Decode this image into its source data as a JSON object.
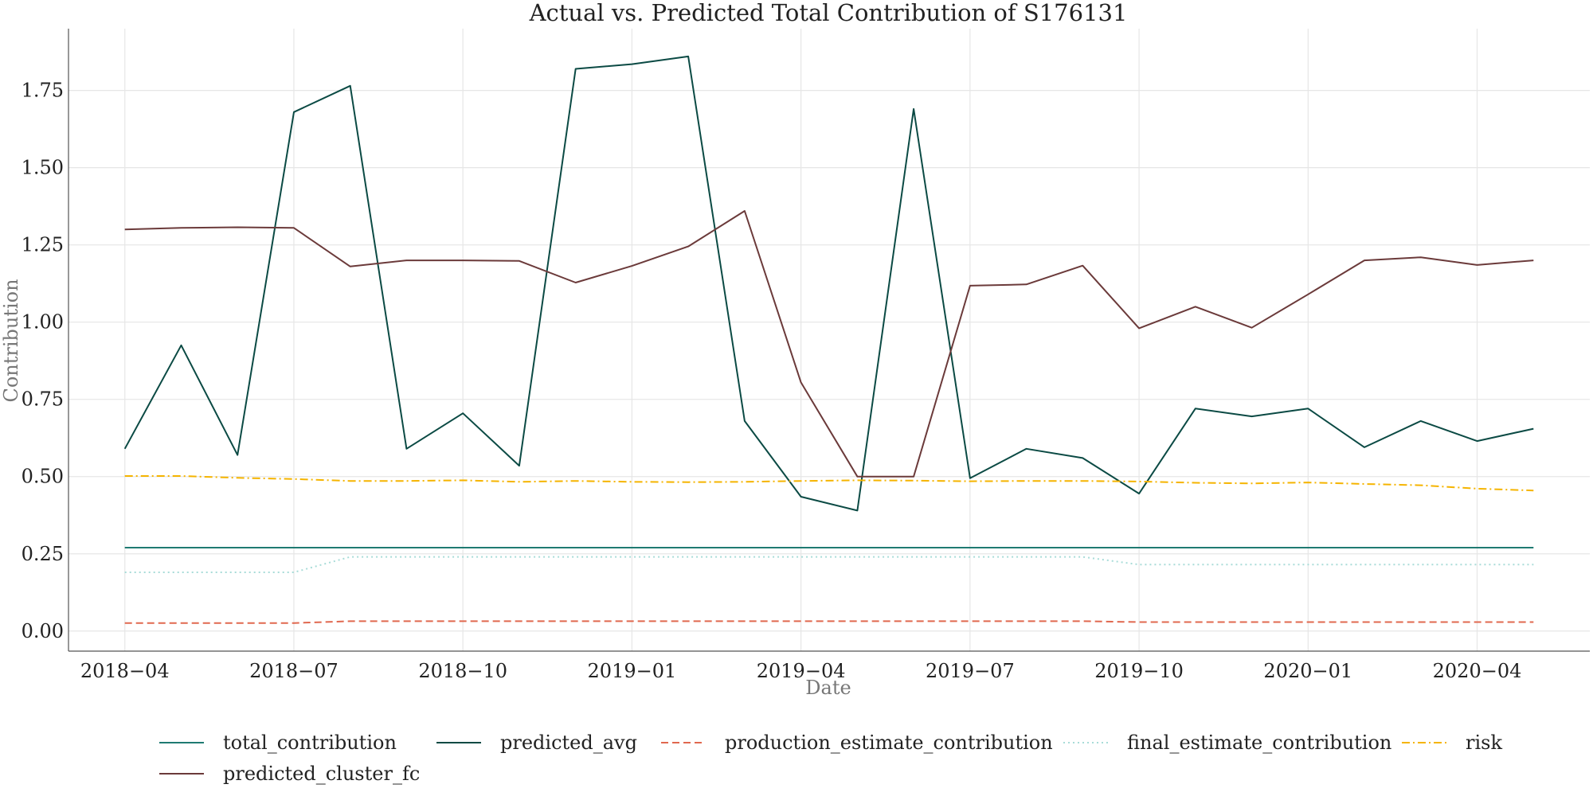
{
  "chart_data": {
    "type": "line",
    "title": "Actual vs. Predicted Total Contribution of S176131",
    "xlabel": "Date",
    "ylabel": "Contribution",
    "x": [
      "2018-04",
      "2018-05",
      "2018-06",
      "2018-07",
      "2018-08",
      "2018-09",
      "2018-10",
      "2018-11",
      "2018-12",
      "2019-01",
      "2019-02",
      "2019-03",
      "2019-04",
      "2019-05",
      "2019-06",
      "2019-07",
      "2019-08",
      "2019-09",
      "2019-10",
      "2019-11",
      "2019-12",
      "2020-01",
      "2020-02",
      "2020-03",
      "2020-04",
      "2020-05"
    ],
    "x_ticks": [
      "2018−04",
      "2018−07",
      "2018−10",
      "2019−01",
      "2019−04",
      "2019−07",
      "2019−10",
      "2020−01",
      "2020−04"
    ],
    "x_tick_dates": [
      "2018-04",
      "2018-07",
      "2018-10",
      "2019-01",
      "2019-04",
      "2019-07",
      "2019-10",
      "2020-01",
      "2020-04"
    ],
    "y_ticks": [
      "0.00",
      "0.25",
      "0.50",
      "0.75",
      "1.00",
      "1.25",
      "1.50",
      "1.75"
    ],
    "y_tick_values": [
      0,
      0.25,
      0.5,
      0.75,
      1.0,
      1.25,
      1.5,
      1.75
    ],
    "xlim": [
      "2018-03",
      "2020-06"
    ],
    "ylim": [
      -0.065,
      1.95
    ],
    "grid": true,
    "legend_position": "bottom",
    "series": [
      {
        "name": "total_contribution",
        "color": "#1f7a72",
        "dash": "solid",
        "values": [
          0.27,
          0.27,
          0.27,
          0.27,
          0.27,
          0.27,
          0.27,
          0.27,
          0.27,
          0.27,
          0.27,
          0.27,
          0.27,
          0.27,
          0.27,
          0.27,
          0.27,
          0.27,
          0.27,
          0.27,
          0.27,
          0.27,
          0.27,
          0.27,
          0.27,
          0.27
        ]
      },
      {
        "name": "predicted_avg",
        "color": "#0b4a44",
        "dash": "solid",
        "values": [
          0.59,
          0.925,
          0.57,
          1.68,
          1.765,
          0.59,
          0.705,
          0.535,
          1.82,
          1.835,
          1.86,
          0.68,
          0.435,
          0.39,
          1.69,
          0.495,
          0.59,
          0.56,
          0.445,
          0.72,
          0.695,
          0.72,
          0.595,
          0.68,
          0.615,
          0.655
        ]
      },
      {
        "name": "production_estimate_contribution",
        "color": "#e0684f",
        "dash": "dashed",
        "values": [
          0.026,
          0.026,
          0.026,
          0.026,
          0.032,
          0.032,
          0.032,
          0.032,
          0.032,
          0.032,
          0.032,
          0.032,
          0.032,
          0.032,
          0.032,
          0.032,
          0.032,
          0.032,
          0.029,
          0.029,
          0.029,
          0.029,
          0.029,
          0.029,
          0.029,
          0.029
        ]
      },
      {
        "name": "final_estimate_contribution",
        "color": "#a8dcd8",
        "dash": "dotted",
        "values": [
          0.19,
          0.19,
          0.19,
          0.19,
          0.24,
          0.24,
          0.24,
          0.24,
          0.24,
          0.24,
          0.24,
          0.24,
          0.24,
          0.24,
          0.24,
          0.24,
          0.24,
          0.24,
          0.215,
          0.215,
          0.215,
          0.215,
          0.215,
          0.215,
          0.215,
          0.215
        ]
      },
      {
        "name": "risk",
        "color": "#f5b400",
        "dash": "dashdot",
        "values": [
          0.502,
          0.502,
          0.496,
          0.492,
          0.486,
          0.486,
          0.488,
          0.483,
          0.486,
          0.483,
          0.482,
          0.483,
          0.486,
          0.488,
          0.487,
          0.485,
          0.486,
          0.486,
          0.484,
          0.48,
          0.478,
          0.481,
          0.476,
          0.472,
          0.461,
          0.455
        ]
      },
      {
        "name": "predicted_cluster_fc",
        "color": "#6b3a3a",
        "dash": "solid",
        "values": [
          1.3,
          1.305,
          1.307,
          1.305,
          1.18,
          1.2,
          1.2,
          1.198,
          1.128,
          1.182,
          1.245,
          1.36,
          0.805,
          0.5,
          0.5,
          1.118,
          1.122,
          1.183,
          0.98,
          1.05,
          0.982,
          1.09,
          1.2,
          1.21,
          1.185,
          1.2
        ]
      }
    ]
  }
}
